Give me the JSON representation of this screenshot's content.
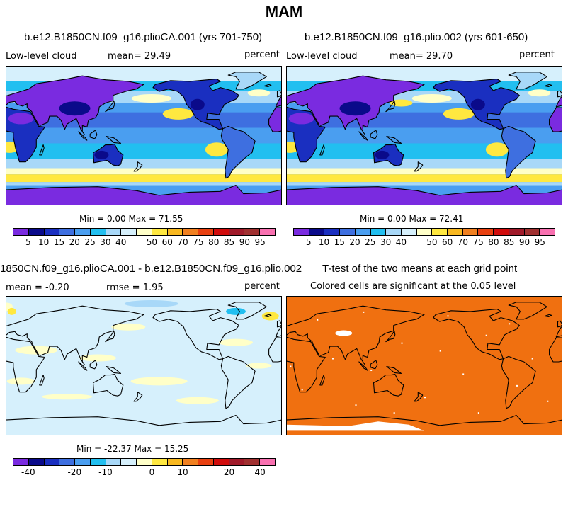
{
  "title": "MAM",
  "panels": [
    {
      "id": "p1",
      "case_title": "b.e12.B1850CN.f09_g16.plioCA.001 (yrs 701-750)",
      "left_label": "Low-level cloud",
      "mean_label": "mean=  29.49",
      "units": "percent",
      "minmax": "Min =   0.00 Max =  71.55"
    },
    {
      "id": "p2",
      "case_title": "b.e12.B1850CN.f09_g16.plio.002 (yrs 601-650)",
      "left_label": "Low-level cloud",
      "mean_label": "mean=  29.70",
      "units": "percent",
      "minmax": "Min =   0.00 Max =  72.41"
    },
    {
      "id": "p3",
      "case_title": "1850CN.f09_g16.plioCA.001 - b.e12.B1850CN.f09_g16.plio.002",
      "left_label": "mean = -0.20",
      "mean_label": "rmse =   1.95",
      "units": "percent",
      "minmax": "Min = -22.37 Max =  15.25"
    },
    {
      "id": "p4",
      "case_title": "T-test of the two means at each grid point",
      "left_label": "Colored cells are significant at the 0.05 level"
    }
  ],
  "colorbars": {
    "absolute": {
      "colors": [
        "#7a2be0",
        "#0a0a8a",
        "#1a2fc0",
        "#3e6fe0",
        "#4a9ef0",
        "#22bff0",
        "#a8d8f8",
        "#d6f0fc",
        "#ffffc8",
        "#ffe840",
        "#f8b820",
        "#f08020",
        "#e84010",
        "#d00c0c",
        "#a01a2a",
        "#a03030",
        "#f870b0"
      ],
      "ticks": [
        "5",
        "10",
        "15",
        "20",
        "25",
        "30",
        "40",
        "50",
        "60",
        "70",
        "75",
        "80",
        "85",
        "90",
        "95"
      ]
    },
    "difference": {
      "colors": [
        "#7a2be0",
        "#0a0a8a",
        "#1a2fc0",
        "#3e6fe0",
        "#4a9ef0",
        "#22bff0",
        "#a8d8f8",
        "#d6f0fc",
        "#ffffc8",
        "#ffe840",
        "#f8b820",
        "#f08020",
        "#e84010",
        "#d00c0c",
        "#a01a2a",
        "#a03030",
        "#f870b0"
      ],
      "ticks": [
        "-40",
        "-20",
        "-10",
        "0",
        "10",
        "20",
        "40"
      ]
    }
  },
  "map_colors": {
    "ocean_mid": "#4a9ef0",
    "ocean_light": "#a8d8f8",
    "stratocumulus": "#ffe840",
    "land_dark": "#7a2be0",
    "land_mid": "#1a2fc0",
    "diff_background": "#d6f0fc",
    "diff_positive": "#ffffc8",
    "ttest_significant": "#f07010"
  }
}
